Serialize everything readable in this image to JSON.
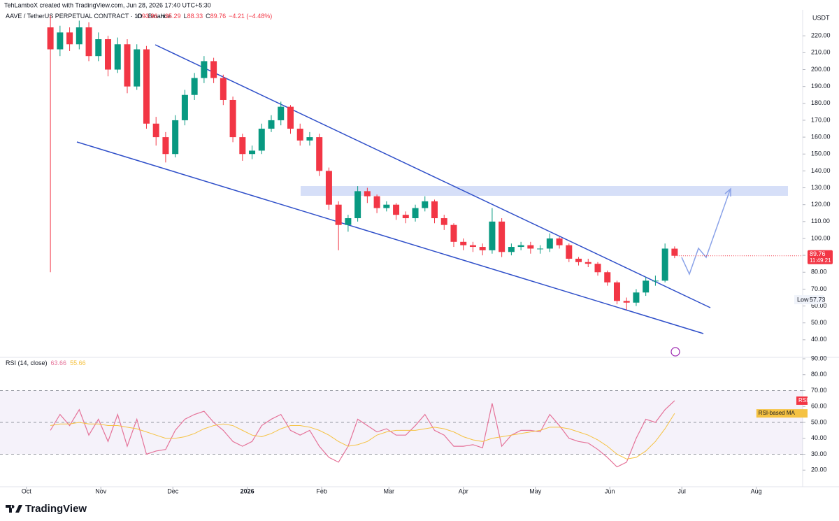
{
  "header": {
    "credit": "TehLamboX created with TradingView.com, Jun 28, 2026 17:40 UTC+5:30",
    "symbol": "AAVE / TetherUS PERPETUAL CONTRACT · 1D · Binance",
    "ohlc_labels": [
      "O",
      "H",
      "L",
      "C"
    ],
    "change": "−4.21 (−4.48%)",
    "unit": "USDT",
    "countdown": "11:49:21",
    "low_label": "Low",
    "brand": "TradingView"
  },
  "chart_data": {
    "type": "candlestick",
    "up_color": "#089981",
    "down_color": "#f23645",
    "x": [
      10,
      14,
      18,
      22,
      26,
      30,
      34,
      38,
      42,
      46,
      50,
      54,
      58,
      62,
      66,
      70,
      74,
      78,
      82,
      86,
      90,
      94,
      98,
      102,
      106,
      110,
      114,
      118,
      122,
      126,
      130,
      134,
      138,
      142,
      146,
      150,
      154,
      158,
      162,
      166,
      170,
      174,
      178,
      182,
      186,
      190,
      194,
      198,
      202,
      206,
      210,
      214,
      218,
      222,
      226,
      230,
      234,
      238,
      242,
      246,
      250,
      254,
      258,
      262,
      266,
      270
    ],
    "open": [
      225,
      212,
      222,
      215,
      225,
      208,
      218,
      200,
      215,
      190,
      212,
      168,
      160,
      150,
      170,
      185,
      195,
      205,
      195,
      182,
      160,
      150,
      152,
      165,
      170,
      178,
      165,
      158,
      160,
      140,
      120,
      108,
      112,
      128,
      125,
      118,
      120,
      114,
      112,
      118,
      122,
      112,
      108,
      98,
      96,
      95,
      93,
      110,
      92,
      95,
      96,
      94,
      94,
      100,
      96,
      88,
      86,
      85,
      80,
      74,
      63,
      62,
      68,
      75,
      75,
      93.96
    ],
    "high": [
      232,
      226,
      225,
      229,
      228,
      222,
      220,
      219,
      218,
      215,
      214,
      172,
      163,
      173,
      188,
      198,
      208,
      207,
      197,
      184,
      162,
      155,
      168,
      173,
      181,
      179,
      168,
      163,
      162,
      142,
      122,
      114,
      131,
      130,
      126,
      122,
      121,
      116,
      120,
      125,
      123,
      114,
      109,
      100,
      98,
      97,
      118,
      112,
      97,
      98,
      98,
      96,
      103,
      101,
      97,
      89,
      88,
      86,
      81,
      75,
      65,
      70,
      77,
      78,
      97,
      95.29
    ],
    "low": [
      80,
      208,
      211,
      212,
      205,
      205,
      196,
      198,
      186,
      188,
      165,
      155,
      145,
      148,
      167,
      182,
      192,
      192,
      179,
      157,
      146,
      147,
      150,
      163,
      167,
      162,
      155,
      155,
      137,
      117,
      93,
      104,
      110,
      121,
      115,
      116,
      111,
      109,
      110,
      116,
      109,
      105,
      95,
      93,
      92,
      90,
      91,
      89,
      90,
      93,
      91,
      91,
      92,
      94,
      86,
      84,
      83,
      78,
      72,
      61,
      57.73,
      60,
      66,
      72,
      74,
      88.33
    ],
    "close": [
      212,
      222,
      215,
      225,
      208,
      218,
      200,
      215,
      190,
      212,
      168,
      160,
      150,
      170,
      185,
      195,
      205,
      195,
      182,
      160,
      150,
      152,
      165,
      170,
      178,
      165,
      158,
      160,
      140,
      120,
      108,
      112,
      128,
      125,
      118,
      120,
      114,
      112,
      118,
      122,
      112,
      108,
      98,
      96,
      95,
      93,
      110,
      92,
      95,
      96,
      94,
      94,
      100,
      96,
      88,
      86,
      85,
      80,
      74,
      63,
      62,
      68,
      75,
      75,
      94,
      89.76
    ],
    "xlim": [
      -11,
      321
    ],
    "xticks": [
      {
        "value": 0,
        "label": "Oct"
      },
      {
        "value": 31,
        "label": "Nov"
      },
      {
        "value": 61,
        "label": "Dec"
      },
      {
        "value": 92,
        "label": "2026"
      },
      {
        "value": 123,
        "label": "Feb"
      },
      {
        "value": 151,
        "label": "Mar"
      },
      {
        "value": 182,
        "label": "Apr"
      },
      {
        "value": 212,
        "label": "May"
      },
      {
        "value": 243,
        "label": "Jun"
      },
      {
        "value": 273,
        "label": "Jul"
      },
      {
        "value": 304,
        "label": "Aug"
      }
    ],
    "ylim": [
      30,
      235
    ],
    "yticks": [
      {
        "value": 40,
        "label": "40.00"
      },
      {
        "value": 50,
        "label": "50.00"
      },
      {
        "value": 60,
        "label": "60.00"
      },
      {
        "value": 70,
        "label": "70.00"
      },
      {
        "value": 80,
        "label": "80.00"
      },
      {
        "value": 90,
        "label": "90.00"
      },
      {
        "value": 100,
        "label": "100.00"
      },
      {
        "value": 110,
        "label": "110.00"
      },
      {
        "value": 120,
        "label": "120.00"
      },
      {
        "value": 130,
        "label": "130.00"
      },
      {
        "value": 140,
        "label": "140.00"
      },
      {
        "value": 150,
        "label": "150.00"
      },
      {
        "value": 160,
        "label": "160.00"
      },
      {
        "value": 170,
        "label": "170.00"
      },
      {
        "value": 180,
        "label": "180.00"
      },
      {
        "value": 190,
        "label": "190.00"
      },
      {
        "value": 200,
        "label": "200.00"
      },
      {
        "value": 210,
        "label": "210.00"
      },
      {
        "value": 220,
        "label": "220.00"
      }
    ],
    "indicator": {
      "type": "line",
      "title": "RSI (14, close)",
      "ylim": [
        10,
        90
      ],
      "yticks": [
        {
          "value": 20,
          "label": "20.00"
        },
        {
          "value": 30,
          "label": "30.00"
        },
        {
          "value": 40,
          "label": "40.00"
        },
        {
          "value": 50,
          "label": "50.00"
        },
        {
          "value": 60,
          "label": "60.00"
        },
        {
          "value": 70,
          "label": "70.00"
        },
        {
          "value": 80,
          "label": "80.00"
        },
        {
          "value": 90,
          "label": "90.00"
        }
      ],
      "bands": [
        30,
        50,
        70
      ],
      "band_color": "#7e57c2",
      "series": [
        {
          "name": "RSI",
          "color": "#e57399",
          "values": [
            45,
            55,
            48,
            58,
            42,
            52,
            38,
            55,
            35,
            52,
            30,
            32,
            33,
            45,
            52,
            55,
            57,
            50,
            45,
            38,
            35,
            38,
            48,
            52,
            55,
            45,
            42,
            45,
            35,
            28,
            25,
            35,
            52,
            48,
            44,
            46,
            42,
            42,
            48,
            55,
            45,
            42,
            35,
            35,
            36,
            34,
            62,
            35,
            42,
            45,
            45,
            44,
            55,
            48,
            40,
            38,
            37,
            33,
            28,
            22,
            25,
            40,
            52,
            50,
            58,
            63.66
          ]
        },
        {
          "name": "RSI-based MA",
          "color": "#f5c242",
          "values": [
            48,
            49,
            49,
            50,
            49,
            49,
            48,
            48,
            47,
            46,
            44,
            42,
            40,
            40,
            41,
            43,
            46,
            48,
            49,
            48,
            45,
            42,
            41,
            43,
            46,
            48,
            48,
            47,
            45,
            42,
            38,
            35,
            36,
            38,
            42,
            44,
            45,
            45,
            45,
            46,
            47,
            46,
            44,
            41,
            39,
            38,
            40,
            41,
            42,
            43,
            44,
            45,
            47,
            47,
            46,
            44,
            42,
            39,
            35,
            30,
            27,
            28,
            32,
            38,
            46,
            55.66
          ]
        }
      ]
    }
  }
}
